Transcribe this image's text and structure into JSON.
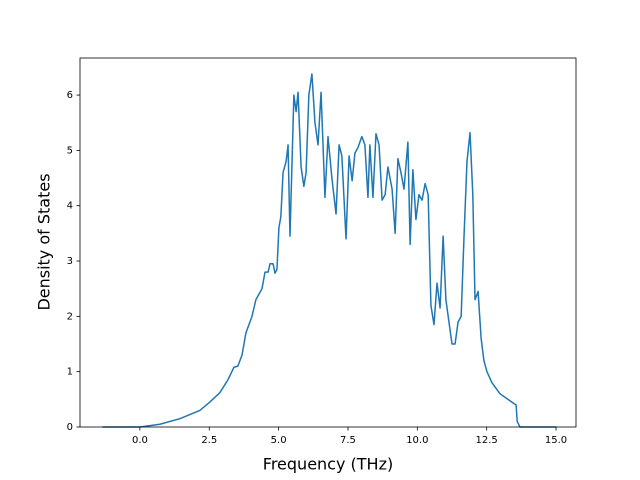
{
  "chart_data": {
    "type": "line",
    "xlabel": "Frequency (THz)",
    "ylabel": "Density of States",
    "xlim": [
      -2.16,
      15.72
    ],
    "ylim": [
      0,
      6.67
    ],
    "xticks": [
      {
        "value": 0,
        "label": "0.0"
      },
      {
        "value": 2.5,
        "label": "2.5"
      },
      {
        "value": 5,
        "label": "5.0"
      },
      {
        "value": 7.5,
        "label": "7.5"
      },
      {
        "value": 10,
        "label": "10.0"
      },
      {
        "value": 12.5,
        "label": "12.5"
      },
      {
        "value": 15,
        "label": "15.0"
      }
    ],
    "yticks": [
      0,
      1,
      2,
      3,
      4,
      5,
      6
    ],
    "grid": false,
    "series": [
      {
        "color": "#1f77b4",
        "x": [
          -1.35,
          0,
          0.72,
          1.44,
          2.16,
          2.52,
          2.88,
          3.17,
          3.39,
          3.53,
          3.68,
          3.82,
          4.04,
          4.18,
          4.4,
          4.51,
          4.62,
          4.69,
          4.8,
          4.87,
          4.94,
          5.01,
          5.08,
          5.16,
          5.27,
          5.34,
          5.41,
          5.55,
          5.63,
          5.7,
          5.81,
          5.91,
          5.99,
          6.09,
          6.2,
          6.31,
          6.42,
          6.53,
          6.67,
          6.78,
          6.92,
          7.07,
          7.18,
          7.28,
          7.43,
          7.54,
          7.65,
          7.75,
          7.86,
          8.0,
          8.11,
          8.22,
          8.29,
          8.4,
          8.51,
          8.62,
          8.73,
          8.84,
          8.94,
          9.09,
          9.2,
          9.3,
          9.41,
          9.52,
          9.66,
          9.74,
          9.84,
          9.95,
          10.06,
          10.17,
          10.28,
          10.39,
          10.49,
          10.6,
          10.71,
          10.82,
          10.93,
          11.03,
          11.14,
          11.25,
          11.36,
          11.47,
          11.58,
          11.68,
          11.79,
          11.9,
          12.0,
          12.08,
          12.19,
          12.3,
          12.4,
          12.51,
          12.69,
          12.98,
          13.27,
          13.41,
          13.49,
          13.56,
          13.6,
          13.7,
          15
        ],
        "values": [
          0,
          0,
          0.05,
          0.15,
          0.3,
          0.45,
          0.62,
          0.85,
          1.08,
          1.1,
          1.3,
          1.7,
          2.0,
          2.3,
          2.5,
          2.8,
          2.8,
          2.95,
          2.95,
          2.78,
          2.85,
          3.6,
          3.8,
          4.6,
          4.8,
          5.1,
          3.45,
          6.0,
          5.7,
          6.05,
          4.7,
          4.35,
          4.6,
          6.0,
          6.38,
          5.5,
          5.1,
          6.05,
          4.15,
          5.25,
          4.5,
          3.85,
          5.1,
          4.9,
          3.4,
          4.9,
          4.45,
          4.95,
          5.05,
          5.25,
          5.1,
          4.15,
          5.1,
          4.15,
          5.3,
          5.1,
          4.1,
          4.2,
          4.7,
          4.3,
          3.5,
          4.85,
          4.6,
          4.3,
          5.15,
          3.3,
          4.65,
          3.75,
          4.2,
          4.1,
          4.4,
          4.2,
          2.2,
          1.85,
          2.6,
          2.15,
          3.45,
          2.3,
          1.9,
          1.5,
          1.5,
          1.9,
          2.0,
          3.4,
          4.8,
          5.32,
          4.2,
          2.3,
          2.45,
          1.6,
          1.2,
          1.0,
          0.8,
          0.6,
          0.5,
          0.45,
          0.42,
          0.4,
          0.1,
          0,
          0
        ]
      }
    ]
  }
}
